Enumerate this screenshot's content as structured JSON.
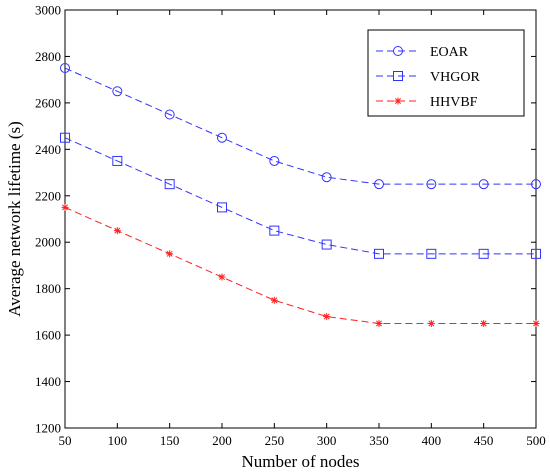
{
  "chart_data": {
    "type": "line",
    "title": "",
    "xlabel": "Number of nodes",
    "ylabel": "Average network lifetime (s)",
    "x": [
      50,
      100,
      150,
      200,
      250,
      300,
      350,
      400,
      450,
      500
    ],
    "xlim": [
      50,
      500
    ],
    "ylim": [
      1200,
      3000
    ],
    "xticks": [
      50,
      100,
      150,
      200,
      250,
      300,
      350,
      400,
      450,
      500
    ],
    "yticks": [
      1200,
      1400,
      1600,
      1800,
      2000,
      2200,
      2400,
      2600,
      2800,
      3000
    ],
    "grid": false,
    "legend_position": "top-right",
    "series": [
      {
        "name": "EOAR",
        "color": "#3333ff",
        "marker": "circle",
        "linestyle": "dashed",
        "values": [
          2750,
          2650,
          2550,
          2450,
          2350,
          2280,
          2250,
          2250,
          2250,
          2250
        ]
      },
      {
        "name": "VHGOR",
        "color": "#3333ff",
        "marker": "square",
        "linestyle": "dashed",
        "values": [
          2450,
          2350,
          2250,
          2150,
          2050,
          1990,
          1950,
          1950,
          1950,
          1950
        ]
      },
      {
        "name": "HHVBF",
        "color": "#ff2020",
        "marker": "star",
        "linestyle": "dashed",
        "values": [
          2150,
          2050,
          1950,
          1850,
          1750,
          1680,
          1650,
          1650,
          1650,
          1650
        ]
      }
    ]
  }
}
